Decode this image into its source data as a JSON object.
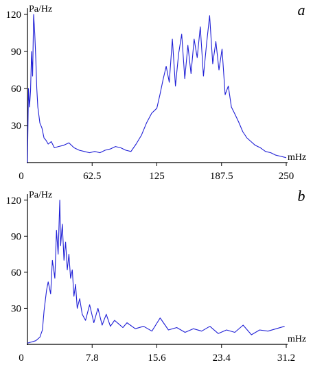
{
  "chart_data": [
    {
      "type": "line",
      "panel_label": "a",
      "ylabel": "Pa/Hz",
      "xlabel": "mHz",
      "xlim": [
        0,
        250
      ],
      "ylim": [
        0,
        125
      ],
      "x_ticks": [
        62.5,
        125,
        187.5,
        250
      ],
      "x_tick_labels": [
        "62.5",
        "125",
        "187.5",
        "250"
      ],
      "origin_label": "0",
      "y_ticks": [
        30,
        60,
        90,
        120
      ],
      "y_tick_labels": [
        "30",
        "60",
        "90",
        "120"
      ],
      "grid": false,
      "color": "#1f1fd6",
      "series": [
        {
          "x": [
            0,
            1,
            2,
            3,
            4,
            5,
            6,
            7,
            8,
            9,
            10,
            12,
            14,
            16,
            18,
            20,
            23,
            26,
            30,
            35,
            40,
            45,
            50,
            55,
            60,
            65,
            70,
            75,
            80,
            85,
            90,
            95,
            100,
            105,
            110,
            115,
            120,
            125,
            128,
            131,
            134,
            137,
            140,
            143,
            146,
            149,
            152,
            155,
            158,
            161,
            164,
            167,
            170,
            173,
            176,
            179,
            182,
            185,
            188,
            191,
            194,
            197,
            200,
            204,
            208,
            212,
            216,
            220,
            225,
            230,
            235,
            240,
            245,
            250
          ],
          "y": [
            0,
            60,
            45,
            58,
            90,
            70,
            120,
            105,
            85,
            60,
            45,
            32,
            28,
            20,
            18,
            15,
            17,
            12,
            13,
            14,
            16,
            12,
            10,
            9,
            8,
            9,
            8,
            10,
            11,
            13,
            12,
            10,
            9,
            15,
            22,
            32,
            40,
            44,
            55,
            67,
            78,
            65,
            100,
            62,
            88,
            104,
            68,
            95,
            72,
            100,
            85,
            110,
            70,
            96,
            119,
            80,
            98,
            75,
            92,
            55,
            62,
            45,
            40,
            33,
            25,
            20,
            17,
            14,
            12,
            9,
            8,
            6,
            5,
            4
          ]
        }
      ]
    },
    {
      "type": "line",
      "panel_label": "b",
      "ylabel": "Pa/Hz",
      "xlabel": "mHz",
      "xlim": [
        0,
        31.2
      ],
      "ylim": [
        0,
        125
      ],
      "x_ticks": [
        7.8,
        15.6,
        23.4,
        31.2
      ],
      "x_tick_labels": [
        "7.8",
        "15.6",
        "23.4",
        "31.2"
      ],
      "origin_label": "0",
      "y_ticks": [
        30,
        60,
        90,
        120
      ],
      "y_tick_labels": [
        "30",
        "60",
        "90",
        "120"
      ],
      "grid": false,
      "color": "#1f1fd6",
      "series": [
        {
          "x": [
            0,
            0.5,
            1.0,
            1.5,
            1.8,
            2.0,
            2.3,
            2.5,
            2.8,
            3.0,
            3.3,
            3.5,
            3.7,
            3.9,
            4.0,
            4.2,
            4.4,
            4.6,
            4.8,
            5.0,
            5.2,
            5.4,
            5.6,
            5.8,
            6.0,
            6.3,
            6.6,
            7.0,
            7.5,
            8.0,
            8.5,
            9.0,
            9.5,
            10.0,
            10.5,
            11.0,
            11.5,
            12.0,
            13.0,
            14.0,
            15.0,
            16.0,
            17.0,
            18.0,
            19.0,
            20.0,
            21.0,
            22.0,
            23.0,
            24.0,
            25.0,
            26.0,
            27.0,
            28.0,
            29.0,
            30.0,
            31.0
          ],
          "y": [
            1,
            2,
            3,
            6,
            12,
            28,
            45,
            52,
            42,
            70,
            55,
            95,
            75,
            120,
            82,
            100,
            70,
            85,
            62,
            75,
            55,
            62,
            40,
            50,
            30,
            38,
            25,
            20,
            33,
            18,
            30,
            16,
            25,
            15,
            20,
            17,
            14,
            18,
            13,
            15,
            11,
            22,
            12,
            14,
            10,
            13,
            11,
            15,
            9,
            12,
            10,
            16,
            8,
            12,
            11,
            13,
            15
          ]
        }
      ]
    }
  ]
}
